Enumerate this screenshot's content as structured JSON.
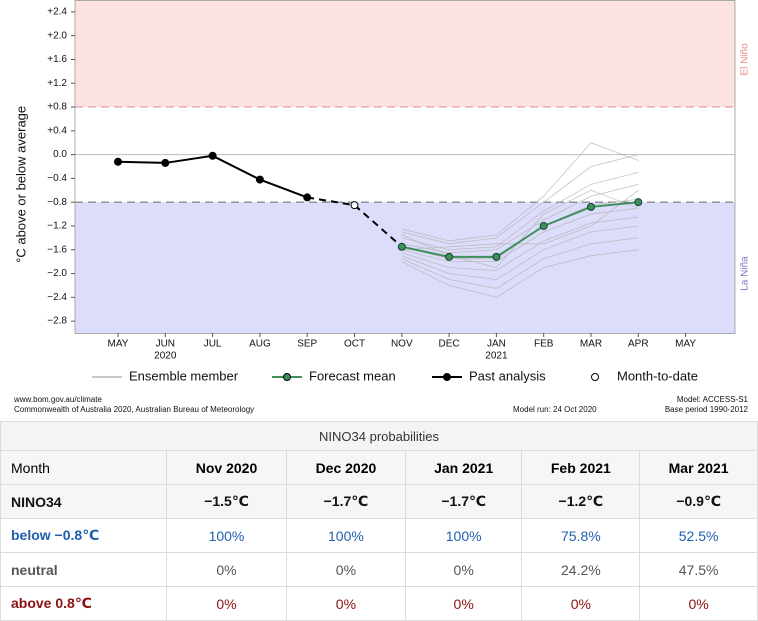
{
  "chart_data": {
    "type": "line",
    "y_axis_label": "°C above or below average",
    "categories": [
      "MAY",
      "JUN",
      "JUL",
      "AUG",
      "SEP",
      "OCT",
      "NOV",
      "DEC",
      "JAN",
      "FEB",
      "MAR",
      "APR",
      "MAY"
    ],
    "category_years": [
      null,
      "2020",
      null,
      null,
      null,
      null,
      null,
      null,
      "2021",
      null,
      null,
      null,
      null
    ],
    "ylim": [
      -3.0,
      2.6
    ],
    "yticks": [
      {
        "value": 2.4,
        "label": "+2.4"
      },
      {
        "value": 2.0,
        "label": "+2.0"
      },
      {
        "value": 1.6,
        "label": "+1.6"
      },
      {
        "value": 1.2,
        "label": "+1.2"
      },
      {
        "value": 0.8,
        "label": "+0.8"
      },
      {
        "value": 0.4,
        "label": "+0.4"
      },
      {
        "value": 0,
        "label": "0.0"
      },
      {
        "value": -0.4,
        "label": "−0.4"
      },
      {
        "value": -0.8,
        "label": "−0.8"
      },
      {
        "value": -1.2,
        "label": "−1.2"
      },
      {
        "value": -1.6,
        "label": "−1.6"
      },
      {
        "value": -2.0,
        "label": "−2.0"
      },
      {
        "value": -2.4,
        "label": "−2.4"
      },
      {
        "value": -2.8,
        "label": "−2.8"
      }
    ],
    "reference_line": 0,
    "el_nino": {
      "label": "El Niño",
      "threshold": 0.8,
      "color": "#fde2e2",
      "line_color": "#e58a8a"
    },
    "la_nina": {
      "label": "La Niña",
      "threshold": -0.8,
      "color": "#dcdcfb",
      "line_color": "#666"
    },
    "ensemble": {
      "name": "Ensemble member",
      "color": "#b5b5b5",
      "members": [
        [
          null,
          null,
          null,
          null,
          null,
          null,
          -1.25,
          -1.45,
          -1.35,
          -0.7,
          0.2,
          -0.1
        ],
        [
          null,
          null,
          null,
          null,
          null,
          null,
          -1.3,
          -1.5,
          -1.4,
          -0.8,
          -0.2,
          0.0
        ],
        [
          null,
          null,
          null,
          null,
          null,
          null,
          -1.4,
          -1.6,
          -1.55,
          -0.95,
          -0.5,
          -0.3
        ],
        [
          null,
          null,
          null,
          null,
          null,
          null,
          -1.5,
          -1.65,
          -1.6,
          -1.1,
          -0.7,
          -0.5
        ],
        [
          null,
          null,
          null,
          null,
          null,
          null,
          -1.55,
          -1.75,
          -1.75,
          -1.2,
          -0.85,
          -0.75
        ],
        [
          null,
          null,
          null,
          null,
          null,
          null,
          -1.6,
          -1.8,
          -1.8,
          -1.3,
          -1.0,
          -0.9
        ],
        [
          null,
          null,
          null,
          null,
          null,
          null,
          -1.65,
          -1.9,
          -1.95,
          -1.45,
          -1.15,
          -1.05
        ],
        [
          null,
          null,
          null,
          null,
          null,
          null,
          -1.7,
          -2.0,
          -2.1,
          -1.6,
          -1.3,
          -1.2
        ],
        [
          null,
          null,
          null,
          null,
          null,
          null,
          -1.75,
          -2.1,
          -2.25,
          -1.75,
          -1.5,
          -1.4
        ],
        [
          null,
          null,
          null,
          null,
          null,
          null,
          -1.8,
          -2.2,
          -2.4,
          -1.9,
          -1.7,
          -1.6
        ],
        [
          null,
          null,
          null,
          null,
          null,
          null,
          -1.35,
          -1.7,
          -1.9,
          -1.0,
          -0.6,
          -0.9
        ],
        [
          null,
          null,
          null,
          null,
          null,
          null,
          -1.6,
          -1.55,
          -1.5,
          -1.5,
          -1.2,
          -0.6
        ]
      ]
    },
    "series": [
      {
        "name": "Forecast mean",
        "color": "#3f8f5a",
        "style": "forecast",
        "values": [
          null,
          null,
          null,
          null,
          null,
          null,
          -1.55,
          -1.72,
          -1.72,
          -1.2,
          -0.88,
          -0.8,
          null
        ]
      },
      {
        "name": "Past analysis",
        "color": "#000000",
        "style": "past",
        "values": [
          -0.12,
          -0.14,
          -0.02,
          -0.42,
          -0.72,
          null,
          null,
          null,
          null,
          null,
          null,
          null,
          null
        ]
      },
      {
        "name": "Month-to-date",
        "color": "#000000",
        "style": "mtd",
        "values": [
          null,
          null,
          null,
          null,
          null,
          -0.85,
          null,
          null,
          null,
          null,
          null,
          null,
          null
        ]
      }
    ],
    "footer": {
      "left": [
        "www.bom.gov.au/climate",
        "Commonwealth of Australia 2020, Australian Bureau of Meteorology"
      ],
      "center": "Model run: 24 Oct 2020",
      "right": [
        "Model: ACCESS-S1",
        "Base period 1990-2012"
      ]
    }
  },
  "table": {
    "title": "NINO34 probabilities",
    "header": [
      "Month",
      "Nov 2020",
      "Dec 2020",
      "Jan 2021",
      "Feb 2021",
      "Mar 2021"
    ],
    "rows": [
      [
        "NINO34",
        "−1.5℃",
        "−1.7℃",
        "−1.7℃",
        "−1.2℃",
        "−0.9℃"
      ],
      [
        "below −0.8℃",
        "100%",
        "100%",
        "100%",
        "75.8%",
        "52.5%"
      ],
      [
        "neutral",
        "0%",
        "0%",
        "0%",
        "24.2%",
        "47.5%"
      ],
      [
        "above 0.8℃",
        "0%",
        "0%",
        "0%",
        "0%",
        "0%"
      ]
    ],
    "row_colors": [
      "#111111",
      "#1f5fb0",
      "#555555",
      "#8b1010"
    ]
  }
}
